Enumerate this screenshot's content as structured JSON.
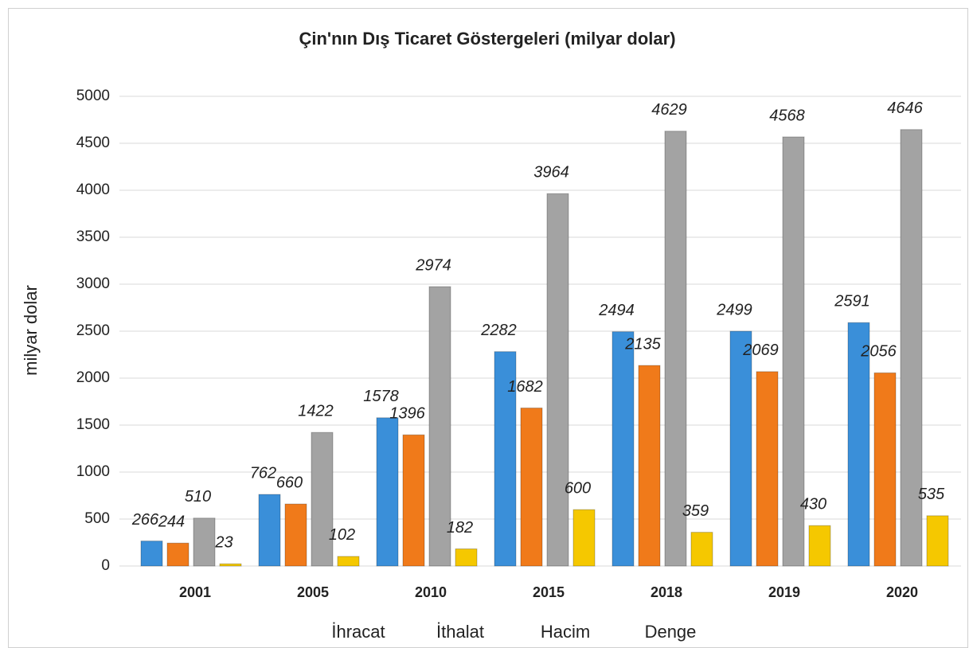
{
  "chart_data": {
    "type": "bar",
    "title": "Çin'nın Dış Ticaret Göstergeleri  (milyar dolar)",
    "y_label": "milyar dolar",
    "categories": [
      "2001",
      "2005",
      "2010",
      "2015",
      "2018",
      "2019",
      "2020"
    ],
    "series": [
      {
        "name": "İhracat",
        "color": "#3a8fd9",
        "values": [
          266,
          762,
          1578,
          2282,
          2494,
          2499,
          2591
        ]
      },
      {
        "name": "İthalat",
        "color": "#f07a1a",
        "values": [
          244,
          660,
          1396,
          1682,
          2135,
          2069,
          2056
        ]
      },
      {
        "name": "Hacim",
        "color": "#a3a3a3",
        "values": [
          510,
          1422,
          2974,
          3964,
          4629,
          4568,
          4646
        ]
      },
      {
        "name": "Denge",
        "color": "#f5c800",
        "values": [
          23,
          102,
          182,
          600,
          359,
          430,
          535
        ]
      }
    ],
    "ylim": [
      0,
      5000
    ],
    "yticks": [
      0,
      500,
      1000,
      1500,
      2000,
      2500,
      3000,
      3500,
      4000,
      4500,
      5000
    ],
    "grid": true,
    "legend": "bottom"
  }
}
